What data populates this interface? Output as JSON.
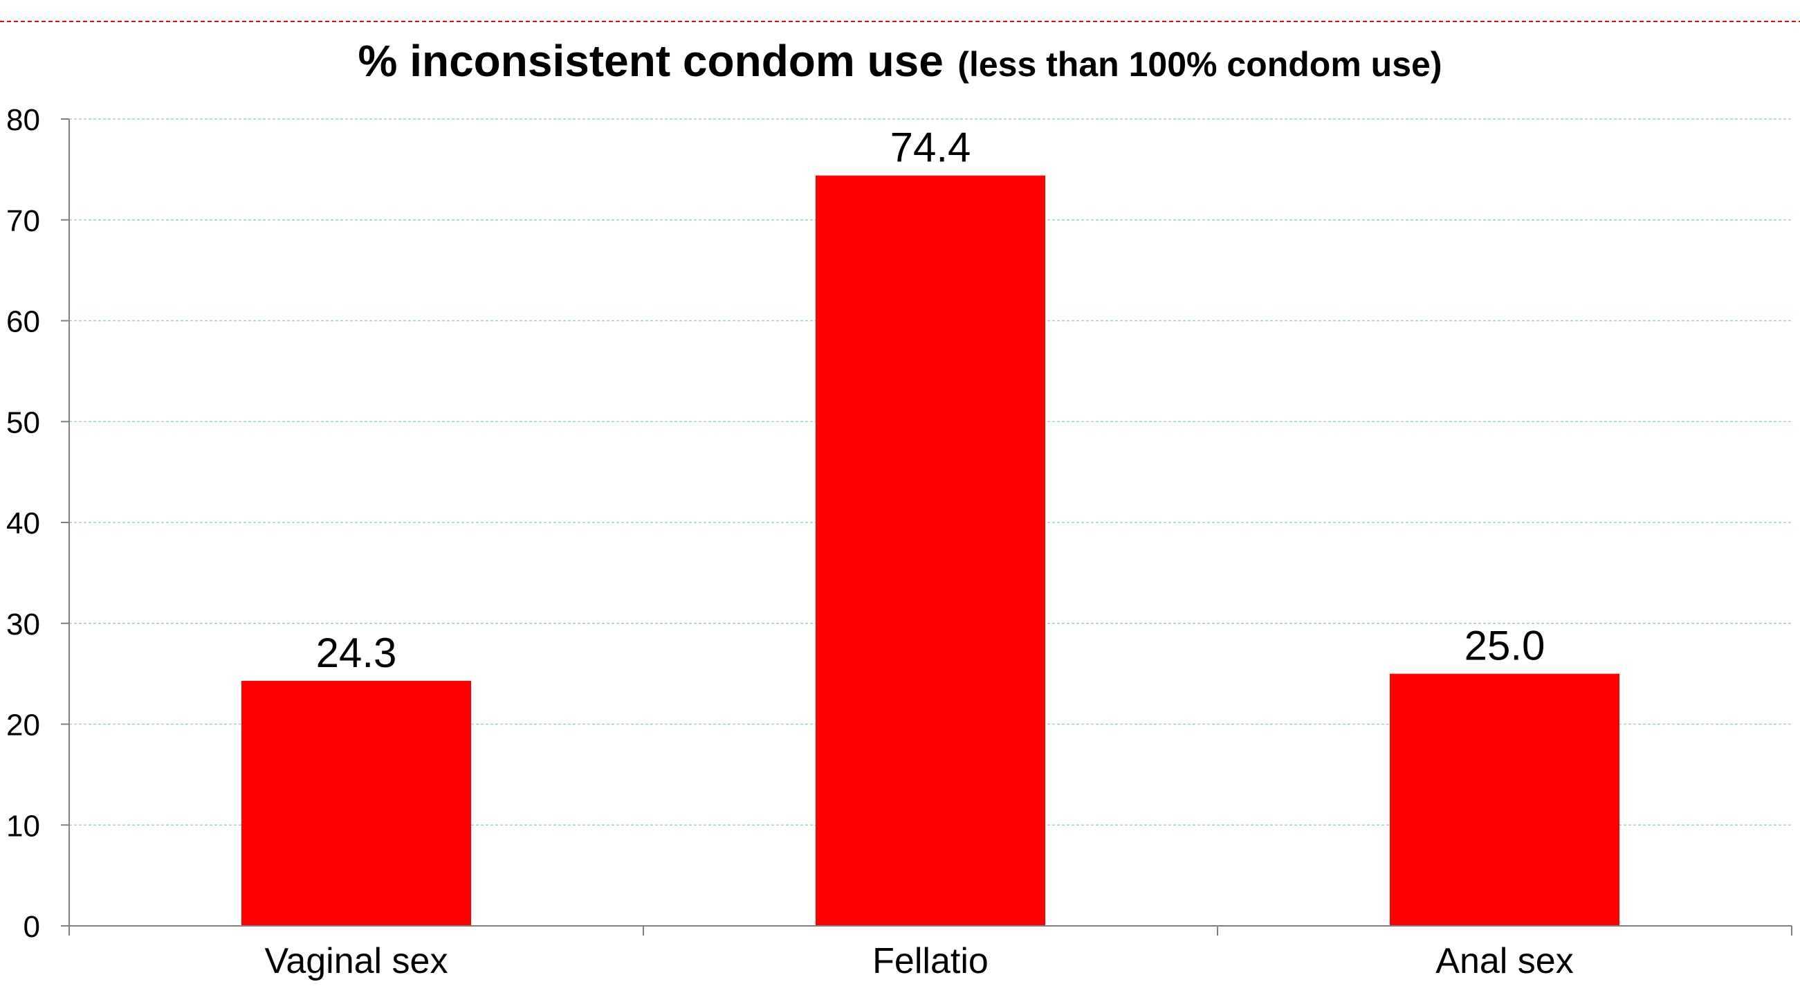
{
  "chart_data": {
    "type": "bar",
    "title": "% inconsistent condom use",
    "subtitle": "(less than 100% condom use)",
    "categories": [
      "Vaginal sex",
      "Fellatio",
      "Anal sex"
    ],
    "values": [
      24.3,
      74.4,
      25.0
    ],
    "value_labels": [
      "24.3",
      "74.4",
      "25.0"
    ],
    "xlabel": "",
    "ylabel": "",
    "ylim": [
      0,
      80
    ],
    "yticks": [
      0,
      10,
      20,
      30,
      40,
      50,
      60,
      70,
      80
    ],
    "grid": true,
    "legend": "none",
    "bar_color": "#ff0000",
    "grid_color": "#9fcfcf",
    "header_rule_color": "#ff0000"
  }
}
